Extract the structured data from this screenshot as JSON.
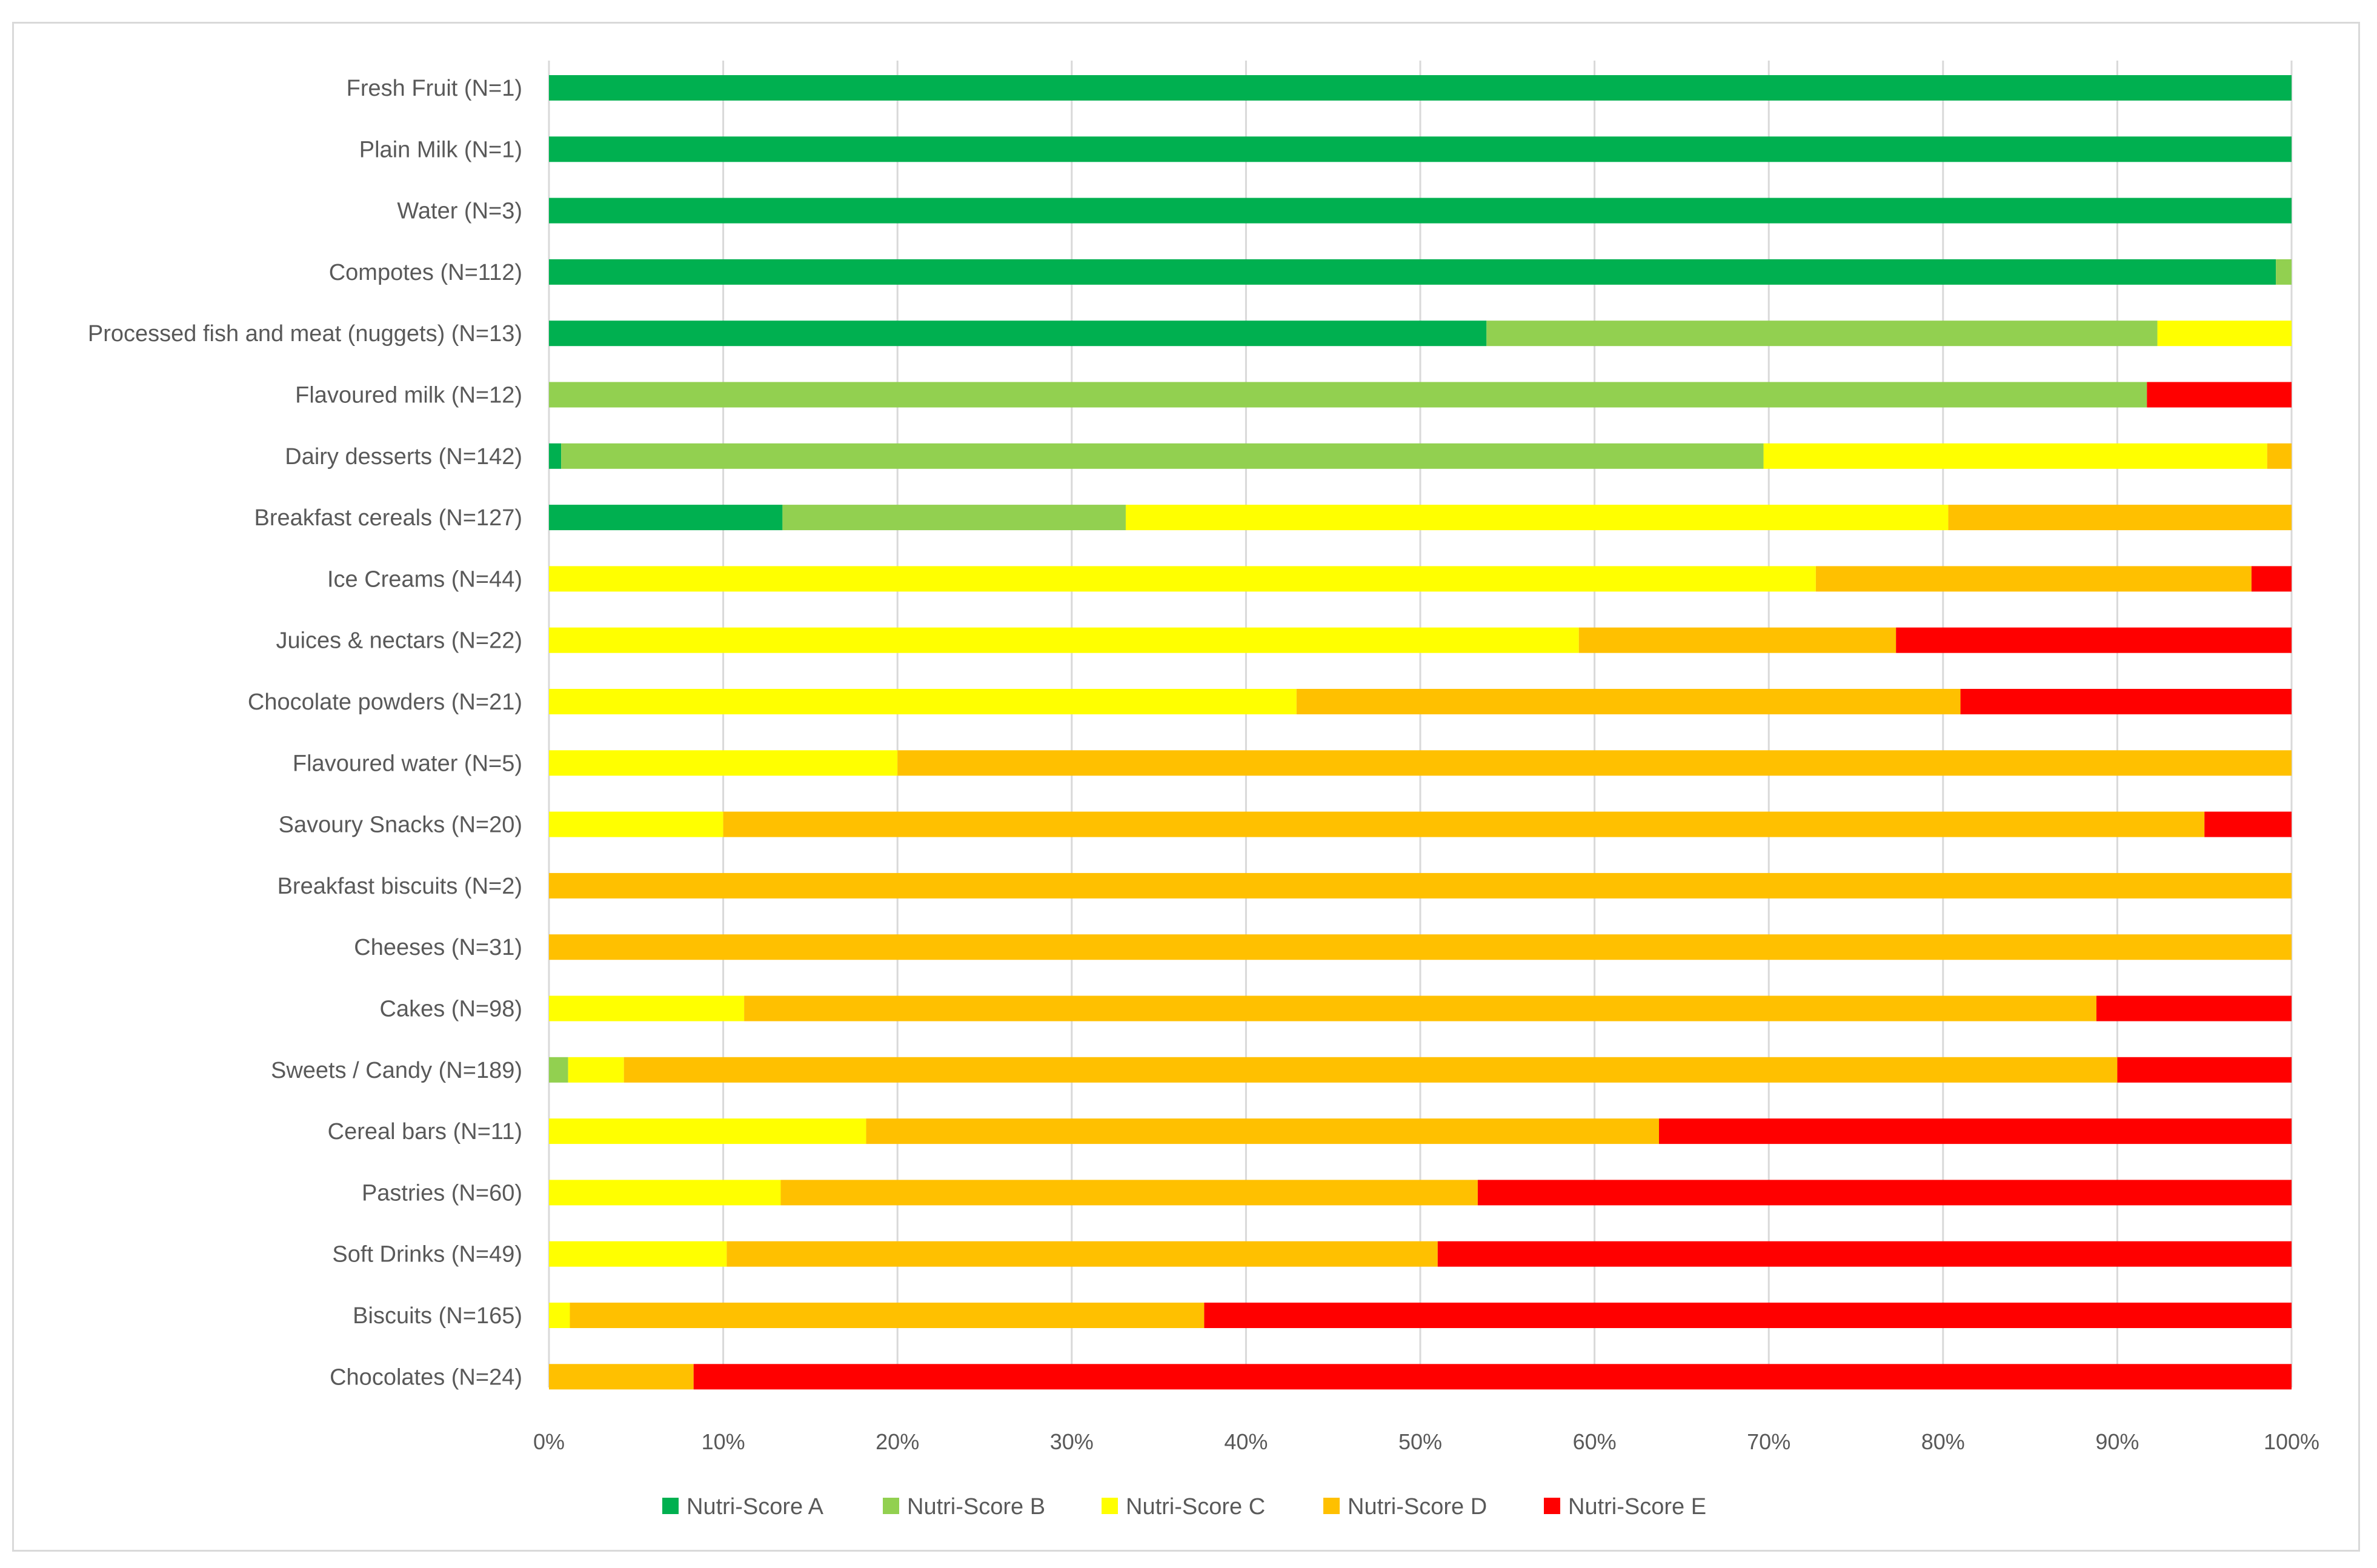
{
  "chart_data": {
    "type": "bar",
    "orientation": "horizontal",
    "stacked": "percent",
    "title": "",
    "xlabel": "",
    "ylabel": "",
    "xlim": [
      0,
      100
    ],
    "x_ticks": [
      "0%",
      "10%",
      "20%",
      "30%",
      "40%",
      "50%",
      "60%",
      "70%",
      "80%",
      "90%",
      "100%"
    ],
    "grid": "vertical",
    "legend_position": "bottom",
    "categories": [
      "Fresh Fruit (N=1)",
      "Plain Milk (N=1)",
      "Water (N=3)",
      "Compotes (N=112)",
      "Processed fish and meat (nuggets) (N=13)",
      "Flavoured milk (N=12)",
      "Dairy desserts (N=142)",
      "Breakfast cereals (N=127)",
      "Ice Creams (N=44)",
      "Juices & nectars (N=22)",
      "Chocolate powders (N=21)",
      "Flavoured water (N=5)",
      "Savoury Snacks (N=20)",
      "Breakfast biscuits (N=2)",
      "Cheeses (N=31)",
      "Cakes (N=98)",
      "Sweets / Candy (N=189)",
      "Cereal bars (N=11)",
      "Pastries (N=60)",
      "Soft Drinks (N=49)",
      "Biscuits (N=165)",
      "Chocolates (N=24)"
    ],
    "series": [
      {
        "name": "Nutri-Score A",
        "color": "#00b050",
        "values": [
          100,
          100,
          100,
          99.1,
          53.8,
          0,
          0.7,
          13.4,
          0,
          0,
          0,
          0,
          0,
          0,
          0,
          0,
          0,
          0,
          0,
          0,
          0,
          0
        ]
      },
      {
        "name": "Nutri-Score B",
        "color": "#92d050",
        "values": [
          0,
          0,
          0,
          0.9,
          38.5,
          91.7,
          69.0,
          19.7,
          0,
          0,
          0,
          0,
          0,
          0,
          0,
          0,
          1.1,
          0,
          0,
          0,
          0,
          0
        ]
      },
      {
        "name": "Nutri-Score C",
        "color": "#ffff00",
        "values": [
          0,
          0,
          0,
          0,
          7.7,
          0,
          28.9,
          47.2,
          72.7,
          59.1,
          42.9,
          20.0,
          10.0,
          0,
          0,
          11.2,
          3.2,
          18.2,
          13.3,
          10.2,
          1.2,
          0
        ]
      },
      {
        "name": "Nutri-Score D",
        "color": "#ffc000",
        "values": [
          0,
          0,
          0,
          0,
          0,
          0,
          1.4,
          19.7,
          25.0,
          18.2,
          38.1,
          80.0,
          85.0,
          100,
          100,
          77.6,
          85.7,
          45.5,
          40.0,
          40.8,
          36.4,
          8.3
        ]
      },
      {
        "name": "Nutri-Score E",
        "color": "#ff0000",
        "values": [
          0,
          0,
          0,
          0,
          0,
          8.3,
          0,
          0,
          2.3,
          22.7,
          19.0,
          0,
          5.0,
          0,
          0,
          11.2,
          10.0,
          36.3,
          46.7,
          49.0,
          62.4,
          91.7
        ]
      }
    ]
  }
}
